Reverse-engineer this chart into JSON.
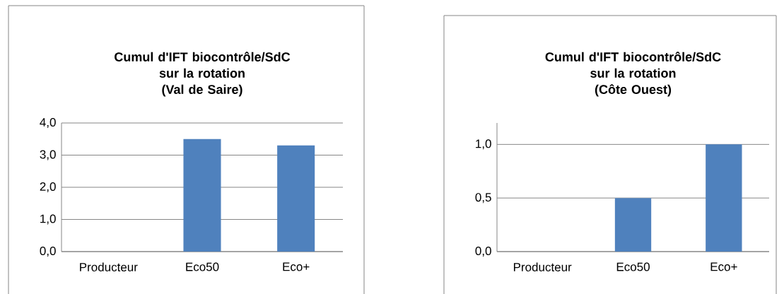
{
  "chart_data": [
    {
      "type": "bar",
      "title": "Cumul d'IFT biocontrôle/SdC sur la rotation",
      "subtitle": "(Val de Saire)",
      "categories": [
        "Producteur",
        "Eco50",
        "Eco+"
      ],
      "values": [
        0,
        3.5,
        3.3
      ],
      "color": "#4f81bd",
      "ylim": [
        0,
        4
      ],
      "yticks": [
        {
          "value": 0,
          "label": "0,0"
        },
        {
          "value": 1,
          "label": "1,0"
        },
        {
          "value": 2,
          "label": "2,0"
        },
        {
          "value": 3,
          "label": "3,0"
        },
        {
          "value": 4,
          "label": "4,0"
        }
      ],
      "grid": "y"
    },
    {
      "type": "bar",
      "title": "Cumul d'IFT biocontrôle/SdC sur la rotation",
      "subtitle": "(Côte Ouest)",
      "categories": [
        "Producteur",
        "Eco50",
        "Eco+"
      ],
      "values": [
        0,
        0.5,
        1.0
      ],
      "color": "#4f81bd",
      "ylim": [
        0,
        1.2
      ],
      "yticks": [
        {
          "value": 0,
          "label": "0,0"
        },
        {
          "value": 0.5,
          "label": "0,5"
        },
        {
          "value": 1,
          "label": "1,0"
        }
      ],
      "grid": "y"
    }
  ]
}
